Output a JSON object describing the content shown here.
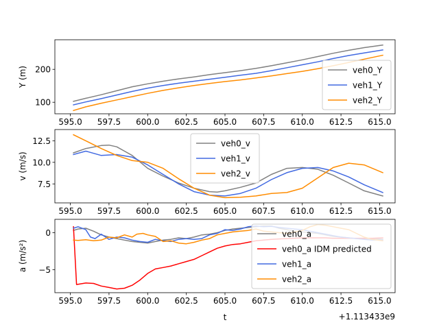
{
  "x_offset_label": "+1.113433e9",
  "chart_data": [
    {
      "type": "line",
      "ylabel": "Y (m)",
      "xlabel": "",
      "xlim": [
        594.0,
        616.0
      ],
      "ylim": [
        65,
        290
      ],
      "xticks": [
        595.0,
        597.5,
        600.0,
        602.5,
        605.0,
        607.5,
        610.0,
        612.5,
        615.0
      ],
      "xtick_labels": [
        "595.0",
        "597.5",
        "600.0",
        "602.5",
        "605.0",
        "607.5",
        "610.0",
        "612.5",
        "615.0"
      ],
      "yticks": [
        100,
        200
      ],
      "ytick_labels": [
        "100",
        "200"
      ],
      "legend_position": "lower right",
      "series": [
        {
          "name": "veh0_Y",
          "color": "#808080",
          "x": [
            595.2,
            596,
            597,
            598,
            599,
            600,
            601,
            602,
            603,
            604,
            605,
            606,
            607,
            608,
            609,
            610,
            611,
            612,
            613,
            614,
            615.2
          ],
          "y": [
            103,
            112,
            123,
            135,
            147,
            156,
            164,
            171,
            177,
            184,
            190,
            196,
            203,
            211,
            220,
            229,
            239,
            249,
            258,
            266,
            274
          ]
        },
        {
          "name": "veh1_Y",
          "color": "#4169e1",
          "x": [
            595.2,
            596,
            597,
            598,
            599,
            600,
            601,
            602,
            603,
            604,
            605,
            606,
            607,
            608,
            609,
            610,
            611,
            612,
            613,
            614,
            615.2
          ],
          "y": [
            92,
            101,
            111,
            122,
            133,
            143,
            151,
            158,
            164,
            170,
            176,
            182,
            188,
            196,
            205,
            214,
            223,
            233,
            242,
            250,
            259
          ]
        },
        {
          "name": "veh2_Y",
          "color": "#ff8c00",
          "x": [
            595.2,
            596,
            597,
            598,
            599,
            600,
            601,
            602,
            603,
            604,
            605,
            606,
            607,
            608,
            609,
            610,
            611,
            612,
            613,
            614,
            615.2
          ],
          "y": [
            75,
            86,
            97,
            107,
            117,
            127,
            136,
            144,
            151,
            157,
            163,
            168,
            174,
            180,
            187,
            194,
            202,
            211,
            221,
            231,
            243
          ]
        }
      ]
    },
    {
      "type": "line",
      "ylabel": "v (m/s)",
      "xlabel": "",
      "xlim": [
        594.0,
        616.0
      ],
      "ylim": [
        5.3,
        13.8
      ],
      "xticks": [
        595.0,
        597.5,
        600.0,
        602.5,
        605.0,
        607.5,
        610.0,
        612.5,
        615.0
      ],
      "xtick_labels": [
        "595.0",
        "597.5",
        "600.0",
        "602.5",
        "605.0",
        "607.5",
        "610.0",
        "612.5",
        "615.0"
      ],
      "yticks": [
        7.5,
        10.0,
        12.5
      ],
      "ytick_labels": [
        "7.5",
        "10.0",
        "12.5"
      ],
      "legend_position": "upper center",
      "series": [
        {
          "name": "veh0_v",
          "color": "#808080",
          "x": [
            595.2,
            596,
            597,
            597.5,
            598,
            598.5,
            599,
            600,
            601,
            602,
            603,
            604,
            604.5,
            605,
            606,
            607,
            608,
            609,
            610,
            611,
            612,
            613,
            614,
            615.2
          ],
          "y": [
            11.1,
            11.6,
            11.95,
            12.0,
            11.8,
            11.3,
            10.8,
            9.3,
            8.4,
            7.6,
            7.0,
            6.6,
            6.55,
            6.7,
            7.1,
            7.6,
            8.6,
            9.3,
            9.4,
            9.2,
            8.5,
            7.6,
            6.7,
            6.1
          ]
        },
        {
          "name": "veh1_v",
          "color": "#4169e1",
          "x": [
            595.2,
            596,
            597,
            598,
            599,
            600,
            601,
            602,
            603,
            604,
            605,
            606,
            607,
            608,
            609,
            610,
            611,
            612,
            613,
            614,
            615.2
          ],
          "y": [
            10.9,
            11.3,
            10.8,
            10.9,
            10.6,
            9.7,
            8.6,
            7.5,
            6.6,
            6.2,
            6.1,
            6.4,
            7.0,
            8.0,
            8.8,
            9.3,
            9.4,
            9.0,
            8.3,
            7.4,
            6.5
          ]
        },
        {
          "name": "veh2_v",
          "color": "#ff8c00",
          "x": [
            595.2,
            596,
            597,
            598,
            599,
            600,
            601,
            602,
            603,
            604,
            605,
            606,
            607,
            608,
            609,
            610,
            611,
            612,
            613,
            614,
            615.2
          ],
          "y": [
            13.2,
            12.5,
            11.6,
            10.8,
            10.2,
            10.0,
            9.3,
            8.1,
            7.0,
            6.2,
            5.9,
            5.95,
            6.1,
            6.4,
            6.5,
            7.0,
            8.2,
            9.4,
            9.9,
            9.7,
            8.8
          ]
        }
      ]
    },
    {
      "type": "line",
      "ylabel": "a (m/s²)",
      "xlabel": "t",
      "xlim": [
        594.0,
        616.0
      ],
      "ylim": [
        -8.1,
        1.8
      ],
      "xticks": [
        595.0,
        597.5,
        600.0,
        602.5,
        605.0,
        607.5,
        610.0,
        612.5,
        615.0
      ],
      "xtick_labels": [
        "595.0",
        "597.5",
        "600.0",
        "602.5",
        "605.0",
        "607.5",
        "610.0",
        "612.5",
        "615.0"
      ],
      "yticks": [
        -5,
        0
      ],
      "ytick_labels": [
        "−5",
        "0"
      ],
      "legend_position": "lower right",
      "series": [
        {
          "name": "veh0_a",
          "color": "#808080",
          "x": [
            595.2,
            595.5,
            596,
            596.5,
            597,
            597.5,
            598,
            598.5,
            599,
            599.5,
            600,
            600.5,
            601,
            601.5,
            602,
            602.5,
            603,
            603.5,
            604,
            604.5,
            605,
            605.5,
            606,
            606.5,
            607,
            607.5,
            608,
            608.5,
            609,
            609.5,
            610,
            610.5,
            611,
            611.5,
            612,
            612.5,
            613,
            613.5,
            614,
            614.5,
            615.2
          ],
          "y": [
            0.3,
            0.5,
            0.6,
            0.2,
            -0.3,
            -0.6,
            -0.8,
            -1.0,
            -1.2,
            -1.3,
            -1.4,
            -1.2,
            -1.0,
            -0.9,
            -0.7,
            -0.8,
            -0.6,
            -0.3,
            -0.2,
            0.0,
            0.3,
            0.5,
            0.6,
            0.7,
            0.8,
            0.9,
            0.9,
            0.6,
            0.4,
            0.2,
            0.1,
            0.0,
            -0.1,
            -0.3,
            -0.5,
            -0.6,
            -0.7,
            -0.8,
            -0.8,
            -0.8,
            -0.9
          ]
        },
        {
          "name": "veh0_a IDM predicted",
          "color": "#ff0000",
          "x": [
            595.2,
            595.4,
            596,
            596.5,
            597,
            597.5,
            598,
            598.5,
            599,
            599.5,
            600,
            600.5,
            601,
            601.5,
            602,
            602.5,
            603,
            603.5,
            604,
            604.5,
            605,
            605.5,
            606,
            606.5,
            607,
            607.5,
            608,
            608.5,
            609,
            609.5,
            610,
            610.5,
            611,
            611.5,
            612,
            612.5,
            613,
            613.5,
            614,
            614.5,
            615.2
          ],
          "y": [
            0.8,
            -7.0,
            -6.8,
            -6.85,
            -7.2,
            -7.4,
            -7.6,
            -7.5,
            -7.1,
            -6.4,
            -5.5,
            -4.9,
            -4.7,
            -4.5,
            -4.2,
            -3.9,
            -3.6,
            -3.1,
            -2.6,
            -2.1,
            -1.8,
            -1.6,
            -1.5,
            -1.3,
            -1.1,
            -1.0,
            -0.9,
            -0.85,
            -0.8,
            -0.75,
            -0.7,
            -0.7,
            -0.7,
            -0.7,
            -0.75,
            -0.75,
            -0.75,
            -0.75,
            -0.75,
            -0.75,
            -0.7
          ]
        },
        {
          "name": "veh1_a",
          "color": "#4169e1",
          "x": [
            595.2,
            595.5,
            596,
            596.3,
            596.6,
            597,
            597.5,
            598,
            598.5,
            599,
            599.5,
            600,
            600.5,
            601,
            601.5,
            602,
            602.5,
            603,
            603.5,
            604,
            604.5,
            605,
            605.5,
            606,
            606.5,
            607,
            607.5,
            608,
            608.5,
            609,
            609.5,
            610,
            610.5,
            611,
            611.5,
            612,
            612.5,
            613,
            613.5,
            614,
            614.5,
            615.2
          ],
          "y": [
            0.6,
            0.8,
            0.4,
            -0.6,
            -0.8,
            -0.2,
            -0.9,
            -0.6,
            -0.7,
            -1.0,
            -1.2,
            -1.3,
            -0.9,
            -1.1,
            -1.2,
            -0.9,
            -0.8,
            -0.9,
            -0.8,
            -0.3,
            -0.1,
            0.4,
            0.3,
            0.5,
            0.8,
            0.9,
            0.8,
            0.85,
            0.7,
            0.6,
            0.5,
            0.4,
            0.2,
            0.0,
            -0.2,
            -0.4,
            -0.6,
            -0.7,
            -0.8,
            -0.9,
            -1.0,
            -1.0
          ]
        },
        {
          "name": "veh2_a",
          "color": "#ff8c00",
          "x": [
            595.2,
            595.5,
            596,
            596.5,
            597,
            597.5,
            598,
            598.5,
            599,
            599.3,
            599.7,
            600,
            600.5,
            601,
            601.5,
            602,
            602.5,
            603,
            603.5,
            604,
            604.5,
            605,
            605.5,
            606,
            606.5,
            607,
            607.5,
            608,
            608.5,
            609,
            609.5,
            610,
            610.5,
            611,
            611.5,
            612,
            612.5,
            613,
            613.5,
            614,
            614.5,
            615.2
          ],
          "y": [
            -1.0,
            -1.05,
            -0.95,
            -1.1,
            -1.0,
            -0.6,
            -0.7,
            -0.3,
            -0.6,
            -0.2,
            -0.1,
            -0.3,
            -0.5,
            -1.2,
            -1.1,
            -1.4,
            -1.5,
            -1.3,
            -1.0,
            -0.8,
            -0.3,
            -0.1,
            0.1,
            0.2,
            0.3,
            0.5,
            0.2,
            0.1,
            0.0,
            -0.1,
            0.1,
            0.3,
            0.8,
            1.1,
            1.0,
            0.8,
            0.6,
            0.4,
            -0.1,
            -0.6,
            -0.9,
            -1.1
          ]
        }
      ]
    }
  ]
}
